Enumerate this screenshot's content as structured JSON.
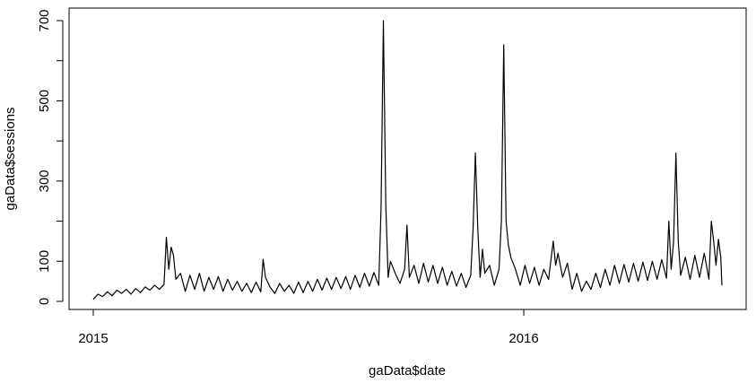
{
  "chart_data": {
    "type": "line",
    "xlabel": "gaData$date",
    "ylabel": "gaData$sessions",
    "x_ticks": [
      "2015",
      "2016"
    ],
    "y_ticks": [
      "0",
      "100",
      "300",
      "500",
      "700"
    ],
    "xlim": [
      "2015-01-01",
      "2016-06-17"
    ],
    "ylim": [
      0,
      700
    ],
    "grid": false,
    "legend": "none",
    "line_color": "#000000",
    "series": [
      {
        "points": [
          [
            "2015-01-01",
            5
          ],
          [
            "2015-01-05",
            18
          ],
          [
            "2015-01-09",
            12
          ],
          [
            "2015-01-13",
            24
          ],
          [
            "2015-01-17",
            14
          ],
          [
            "2015-01-21",
            28
          ],
          [
            "2015-01-25",
            20
          ],
          [
            "2015-01-29",
            30
          ],
          [
            "2015-02-02",
            18
          ],
          [
            "2015-02-06",
            32
          ],
          [
            "2015-02-10",
            22
          ],
          [
            "2015-02-14",
            36
          ],
          [
            "2015-02-18",
            28
          ],
          [
            "2015-02-22",
            40
          ],
          [
            "2015-02-26",
            30
          ],
          [
            "2015-03-02",
            42
          ],
          [
            "2015-03-04",
            160
          ],
          [
            "2015-03-06",
            80
          ],
          [
            "2015-03-08",
            135
          ],
          [
            "2015-03-10",
            115
          ],
          [
            "2015-03-12",
            55
          ],
          [
            "2015-03-16",
            70
          ],
          [
            "2015-03-20",
            25
          ],
          [
            "2015-03-24",
            65
          ],
          [
            "2015-03-28",
            30
          ],
          [
            "2015-04-01",
            70
          ],
          [
            "2015-04-05",
            25
          ],
          [
            "2015-04-09",
            60
          ],
          [
            "2015-04-13",
            30
          ],
          [
            "2015-04-17",
            62
          ],
          [
            "2015-04-21",
            25
          ],
          [
            "2015-04-25",
            55
          ],
          [
            "2015-04-29",
            28
          ],
          [
            "2015-05-03",
            50
          ],
          [
            "2015-05-07",
            25
          ],
          [
            "2015-05-11",
            45
          ],
          [
            "2015-05-15",
            22
          ],
          [
            "2015-05-19",
            48
          ],
          [
            "2015-05-23",
            24
          ],
          [
            "2015-05-25",
            105
          ],
          [
            "2015-05-27",
            60
          ],
          [
            "2015-05-31",
            35
          ],
          [
            "2015-06-04",
            20
          ],
          [
            "2015-06-08",
            45
          ],
          [
            "2015-06-12",
            25
          ],
          [
            "2015-06-16",
            40
          ],
          [
            "2015-06-20",
            20
          ],
          [
            "2015-06-24",
            48
          ],
          [
            "2015-06-28",
            22
          ],
          [
            "2015-07-02",
            50
          ],
          [
            "2015-07-06",
            25
          ],
          [
            "2015-07-10",
            55
          ],
          [
            "2015-07-14",
            28
          ],
          [
            "2015-07-18",
            58
          ],
          [
            "2015-07-22",
            30
          ],
          [
            "2015-07-26",
            60
          ],
          [
            "2015-07-30",
            32
          ],
          [
            "2015-08-03",
            62
          ],
          [
            "2015-08-07",
            30
          ],
          [
            "2015-08-11",
            65
          ],
          [
            "2015-08-15",
            35
          ],
          [
            "2015-08-19",
            70
          ],
          [
            "2015-08-23",
            38
          ],
          [
            "2015-08-27",
            72
          ],
          [
            "2015-08-31",
            40
          ],
          [
            "2015-09-02",
            230
          ],
          [
            "2015-09-04",
            700
          ],
          [
            "2015-09-06",
            240
          ],
          [
            "2015-09-08",
            60
          ],
          [
            "2015-09-10",
            100
          ],
          [
            "2015-09-14",
            70
          ],
          [
            "2015-09-18",
            45
          ],
          [
            "2015-09-22",
            80
          ],
          [
            "2015-09-24",
            190
          ],
          [
            "2015-09-26",
            60
          ],
          [
            "2015-09-30",
            90
          ],
          [
            "2015-10-04",
            45
          ],
          [
            "2015-10-08",
            95
          ],
          [
            "2015-10-12",
            48
          ],
          [
            "2015-10-16",
            90
          ],
          [
            "2015-10-20",
            45
          ],
          [
            "2015-10-24",
            85
          ],
          [
            "2015-10-28",
            40
          ],
          [
            "2015-11-01",
            75
          ],
          [
            "2015-11-05",
            38
          ],
          [
            "2015-11-09",
            70
          ],
          [
            "2015-11-13",
            35
          ],
          [
            "2015-11-17",
            65
          ],
          [
            "2015-11-19",
            180
          ],
          [
            "2015-11-21",
            370
          ],
          [
            "2015-11-23",
            180
          ],
          [
            "2015-11-25",
            60
          ],
          [
            "2015-11-27",
            130
          ],
          [
            "2015-11-29",
            70
          ],
          [
            "2015-12-03",
            90
          ],
          [
            "2015-12-07",
            40
          ],
          [
            "2015-12-11",
            80
          ],
          [
            "2015-12-13",
            200
          ],
          [
            "2015-12-15",
            640
          ],
          [
            "2015-12-17",
            200
          ],
          [
            "2015-12-19",
            140
          ],
          [
            "2015-12-21",
            110
          ],
          [
            "2015-12-25",
            80
          ],
          [
            "2015-12-29",
            40
          ],
          [
            "2016-01-02",
            90
          ],
          [
            "2016-01-06",
            45
          ],
          [
            "2016-01-10",
            85
          ],
          [
            "2016-01-14",
            40
          ],
          [
            "2016-01-18",
            80
          ],
          [
            "2016-01-22",
            55
          ],
          [
            "2016-01-26",
            150
          ],
          [
            "2016-01-28",
            90
          ],
          [
            "2016-01-30",
            120
          ],
          [
            "2016-02-03",
            60
          ],
          [
            "2016-02-07",
            95
          ],
          [
            "2016-02-11",
            30
          ],
          [
            "2016-02-15",
            70
          ],
          [
            "2016-02-19",
            25
          ],
          [
            "2016-02-23",
            50
          ],
          [
            "2016-02-27",
            30
          ],
          [
            "2016-03-02",
            70
          ],
          [
            "2016-03-06",
            35
          ],
          [
            "2016-03-10",
            80
          ],
          [
            "2016-03-14",
            40
          ],
          [
            "2016-03-18",
            90
          ],
          [
            "2016-03-22",
            45
          ],
          [
            "2016-03-26",
            92
          ],
          [
            "2016-03-30",
            48
          ],
          [
            "2016-04-03",
            95
          ],
          [
            "2016-04-07",
            50
          ],
          [
            "2016-04-11",
            98
          ],
          [
            "2016-04-15",
            52
          ],
          [
            "2016-04-19",
            100
          ],
          [
            "2016-04-23",
            55
          ],
          [
            "2016-04-27",
            104
          ],
          [
            "2016-05-01",
            58
          ],
          [
            "2016-05-03",
            200
          ],
          [
            "2016-05-05",
            80
          ],
          [
            "2016-05-07",
            150
          ],
          [
            "2016-05-09",
            370
          ],
          [
            "2016-05-11",
            150
          ],
          [
            "2016-05-13",
            65
          ],
          [
            "2016-05-17",
            110
          ],
          [
            "2016-05-21",
            55
          ],
          [
            "2016-05-25",
            115
          ],
          [
            "2016-05-29",
            60
          ],
          [
            "2016-06-02",
            120
          ],
          [
            "2016-06-06",
            55
          ],
          [
            "2016-06-08",
            200
          ],
          [
            "2016-06-10",
            150
          ],
          [
            "2016-06-12",
            90
          ],
          [
            "2016-06-14",
            155
          ],
          [
            "2016-06-16",
            110
          ],
          [
            "2016-06-17",
            40
          ]
        ]
      }
    ]
  }
}
